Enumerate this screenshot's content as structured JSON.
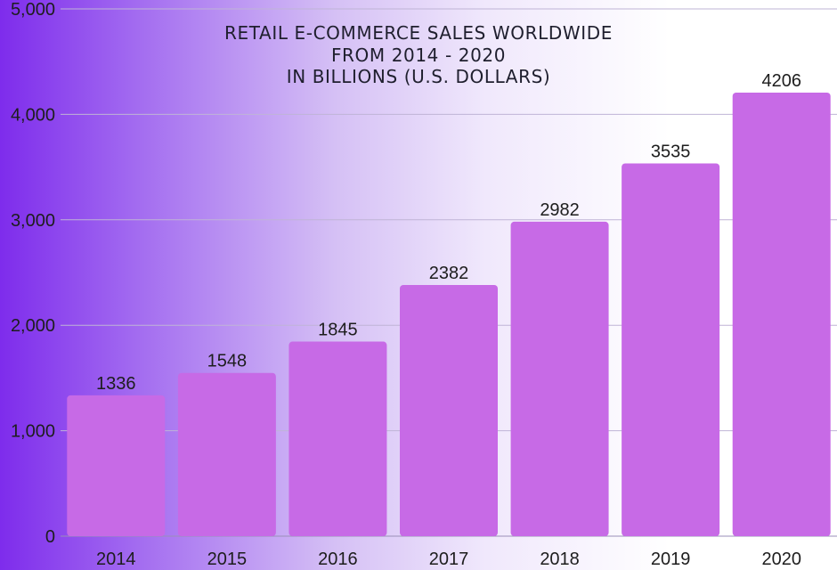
{
  "chart_data": {
    "type": "bar",
    "title_lines": [
      "RETAIL E-COMMERCE SALES WORLDWIDE",
      "FROM 2014 - 2020",
      "IN BILLIONS (U.S. DOLLARS)"
    ],
    "categories": [
      "2014",
      "2015",
      "2016",
      "2017",
      "2018",
      "2019",
      "2020"
    ],
    "values": [
      1336,
      1548,
      1845,
      2382,
      2982,
      3535,
      4206
    ],
    "value_labels": [
      "1336",
      "1548",
      "1845",
      "2382",
      "2982",
      "3535",
      "4206"
    ],
    "y_ticks": [
      0,
      1000,
      2000,
      3000,
      4000,
      5000
    ],
    "y_tick_labels": [
      "0",
      "1,000",
      "2,000",
      "3,000",
      "4,000",
      "5,000"
    ],
    "ylim": [
      0,
      5000
    ],
    "grid": true,
    "legend": "none",
    "bar_color": "#c76ae6",
    "grid_color": "#bfb4d6"
  }
}
